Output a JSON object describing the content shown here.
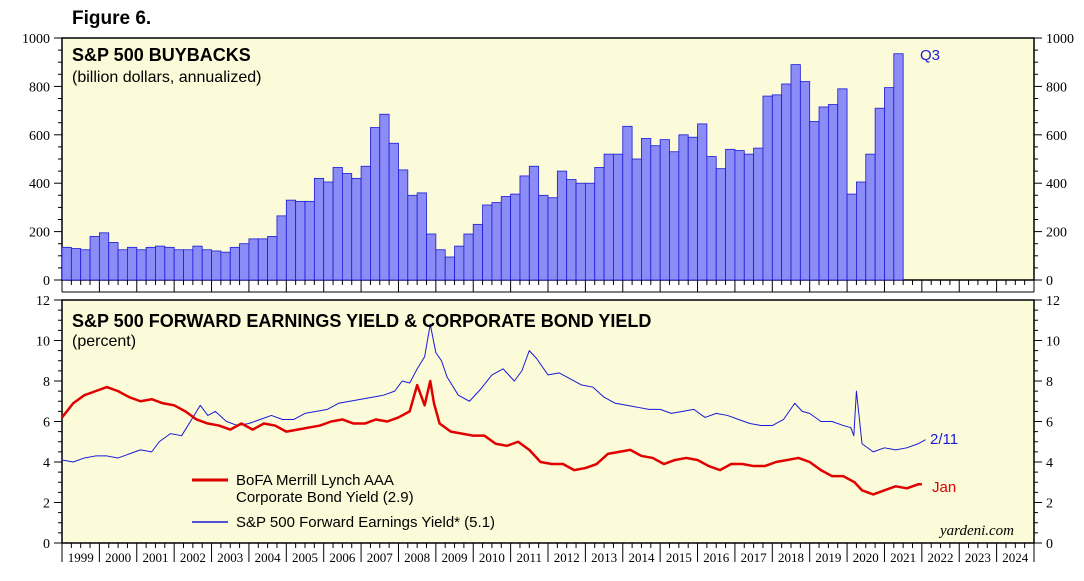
{
  "figure_title": "Figure 6.",
  "credit": "yardeni.com",
  "colors": {
    "panel_bg": "#fbfbd9",
    "bar_fill": "#8c8cf6",
    "bar_stroke": "#1a1ad8",
    "red": "#e00000",
    "blue": "#1a1ad8"
  },
  "x_axis": {
    "years": [
      "1999",
      "2000",
      "2001",
      "2002",
      "2003",
      "2004",
      "2005",
      "2006",
      "2007",
      "2008",
      "2009",
      "2010",
      "2011",
      "2012",
      "2013",
      "2014",
      "2015",
      "2016",
      "2017",
      "2018",
      "2019",
      "2020",
      "2021",
      "2022",
      "2023",
      "2024"
    ]
  },
  "chart_data": [
    {
      "type": "bar",
      "title": "S&P 500 BUYBACKS",
      "subtitle": "(billion dollars, annualized)",
      "ylim": [
        0,
        1000
      ],
      "yticks": [
        0,
        200,
        400,
        600,
        800,
        1000
      ],
      "x_start": 1999.0,
      "x_step": 0.25,
      "values": [
        135,
        130,
        125,
        180,
        195,
        155,
        125,
        135,
        125,
        135,
        140,
        135,
        125,
        125,
        140,
        125,
        120,
        115,
        135,
        150,
        170,
        170,
        180,
        265,
        330,
        325,
        325,
        420,
        405,
        465,
        440,
        420,
        470,
        630,
        685,
        565,
        455,
        350,
        360,
        190,
        125,
        95,
        140,
        190,
        230,
        310,
        320,
        345,
        355,
        430,
        470,
        350,
        340,
        450,
        415,
        400,
        400,
        465,
        520,
        520,
        635,
        500,
        585,
        555,
        580,
        530,
        600,
        590,
        645,
        510,
        460,
        540,
        535,
        520,
        545,
        760,
        765,
        810,
        890,
        820,
        655,
        715,
        725,
        790,
        355,
        405,
        520,
        710,
        795,
        935
      ],
      "end_label": "Q3"
    },
    {
      "type": "line",
      "title": "S&P 500 FORWARD EARNINGS YIELD & CORPORATE BOND YIELD",
      "subtitle": "(percent)",
      "ylim": [
        0,
        12
      ],
      "yticks": [
        0,
        2,
        4,
        6,
        8,
        10,
        12
      ],
      "series": [
        {
          "name": "BoFA Merrill Lynch AAA",
          "name_line2": "Corporate Bond Yield (2.9)",
          "end_label": "Jan",
          "x": [
            1999.0,
            1999.3,
            1999.6,
            1999.9,
            2000.2,
            2000.5,
            2000.8,
            2001.1,
            2001.4,
            2001.7,
            2002.0,
            2002.3,
            2002.6,
            2002.9,
            2003.2,
            2003.5,
            2003.8,
            2004.1,
            2004.4,
            2004.7,
            2005.0,
            2005.3,
            2005.6,
            2005.9,
            2006.2,
            2006.5,
            2006.8,
            2007.1,
            2007.4,
            2007.7,
            2008.0,
            2008.3,
            2008.5,
            2008.7,
            2008.85,
            2008.95,
            2009.1,
            2009.4,
            2009.7,
            2010.0,
            2010.3,
            2010.6,
            2010.9,
            2011.2,
            2011.5,
            2011.8,
            2012.1,
            2012.4,
            2012.7,
            2013.0,
            2013.3,
            2013.6,
            2013.9,
            2014.2,
            2014.5,
            2014.8,
            2015.1,
            2015.4,
            2015.7,
            2016.0,
            2016.3,
            2016.6,
            2016.9,
            2017.2,
            2017.5,
            2017.8,
            2018.1,
            2018.4,
            2018.7,
            2019.0,
            2019.3,
            2019.6,
            2019.9,
            2020.2,
            2020.4,
            2020.7,
            2021.0,
            2021.3,
            2021.6,
            2021.9,
            2022.0
          ],
          "values": [
            6.2,
            6.9,
            7.3,
            7.5,
            7.7,
            7.5,
            7.2,
            7.0,
            7.1,
            6.9,
            6.8,
            6.5,
            6.1,
            5.9,
            5.8,
            5.6,
            5.9,
            5.6,
            5.9,
            5.8,
            5.5,
            5.6,
            5.7,
            5.8,
            6.0,
            6.1,
            5.9,
            5.9,
            6.1,
            6.0,
            6.2,
            6.5,
            7.8,
            6.8,
            8.0,
            6.9,
            5.9,
            5.5,
            5.4,
            5.3,
            5.3,
            4.9,
            4.8,
            5.0,
            4.6,
            4.0,
            3.9,
            3.9,
            3.6,
            3.7,
            3.9,
            4.4,
            4.5,
            4.6,
            4.3,
            4.2,
            3.9,
            4.1,
            4.2,
            4.1,
            3.8,
            3.6,
            3.9,
            3.9,
            3.8,
            3.8,
            4.0,
            4.1,
            4.2,
            4.0,
            3.6,
            3.3,
            3.3,
            3.0,
            2.6,
            2.4,
            2.6,
            2.8,
            2.7,
            2.9,
            2.9
          ],
          "color": "#e00000"
        },
        {
          "name": "S&P 500 Forward Earnings Yield* (5.1)",
          "end_label": "2/11",
          "x": [
            1999.0,
            1999.3,
            1999.6,
            1999.9,
            2000.2,
            2000.5,
            2000.8,
            2001.1,
            2001.4,
            2001.6,
            2001.9,
            2002.2,
            2002.5,
            2002.7,
            2002.9,
            2003.1,
            2003.4,
            2003.7,
            2004.0,
            2004.3,
            2004.6,
            2004.9,
            2005.2,
            2005.5,
            2005.8,
            2006.1,
            2006.4,
            2006.7,
            2007.0,
            2007.3,
            2007.6,
            2007.9,
            2008.1,
            2008.3,
            2008.5,
            2008.7,
            2008.85,
            2009.0,
            2009.15,
            2009.3,
            2009.6,
            2009.9,
            2010.2,
            2010.5,
            2010.8,
            2011.1,
            2011.3,
            2011.5,
            2011.7,
            2012.0,
            2012.3,
            2012.6,
            2012.9,
            2013.2,
            2013.5,
            2013.8,
            2014.1,
            2014.4,
            2014.7,
            2015.0,
            2015.3,
            2015.6,
            2015.9,
            2016.2,
            2016.5,
            2016.8,
            2017.1,
            2017.4,
            2017.7,
            2018.0,
            2018.3,
            2018.6,
            2018.8,
            2019.0,
            2019.3,
            2019.6,
            2019.9,
            2020.1,
            2020.18,
            2020.25,
            2020.4,
            2020.7,
            2021.0,
            2021.3,
            2021.6,
            2021.9,
            2022.1
          ],
          "values": [
            4.1,
            4.0,
            4.2,
            4.3,
            4.3,
            4.2,
            4.4,
            4.6,
            4.5,
            5.0,
            5.4,
            5.3,
            6.2,
            6.8,
            6.3,
            6.5,
            6.0,
            5.8,
            5.9,
            6.1,
            6.3,
            6.1,
            6.1,
            6.4,
            6.5,
            6.6,
            6.9,
            7.0,
            7.1,
            7.2,
            7.3,
            7.5,
            8.0,
            7.9,
            8.6,
            9.2,
            10.8,
            9.4,
            9.0,
            8.2,
            7.3,
            7.0,
            7.6,
            8.3,
            8.6,
            8.0,
            8.5,
            9.5,
            9.1,
            8.3,
            8.4,
            8.1,
            7.8,
            7.7,
            7.2,
            6.9,
            6.8,
            6.7,
            6.6,
            6.6,
            6.4,
            6.5,
            6.6,
            6.2,
            6.4,
            6.3,
            6.1,
            5.9,
            5.8,
            5.8,
            6.1,
            6.9,
            6.5,
            6.4,
            6.0,
            6.0,
            5.8,
            5.7,
            5.3,
            7.5,
            4.9,
            4.5,
            4.7,
            4.6,
            4.7,
            4.9,
            5.1
          ],
          "color": "#1a1ad8"
        }
      ]
    }
  ]
}
